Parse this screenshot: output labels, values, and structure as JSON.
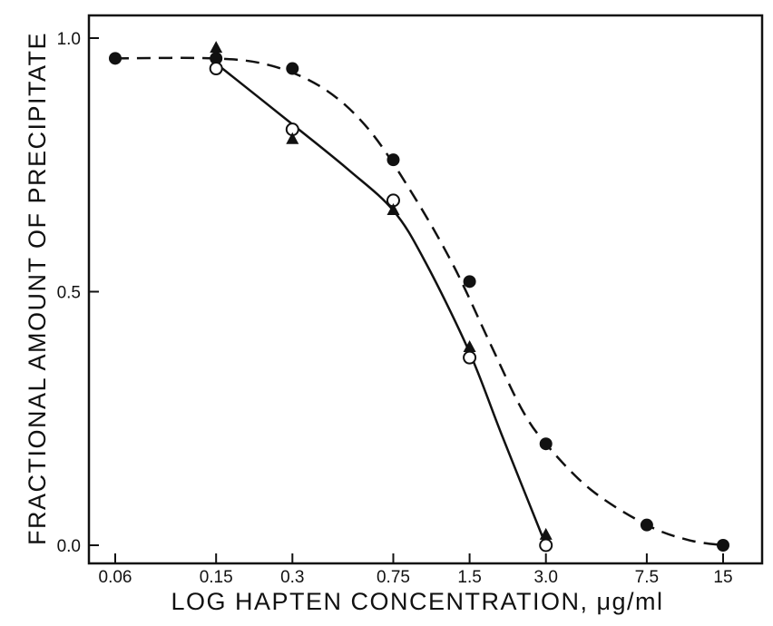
{
  "chart_data": {
    "type": "line",
    "xscale": "log",
    "title": "",
    "xlabel": "LOG HAPTEN CONCENTRATION, μg/ml",
    "ylabel": "FRACTIONAL AMOUNT OF PRECIPITATE",
    "xticks": [
      0.06,
      0.15,
      0.3,
      0.75,
      1.5,
      3.0,
      7.5,
      15
    ],
    "xtick_labels": [
      "0.06",
      "0.15",
      "0.3",
      "0.75",
      "1.5",
      "3.0",
      "7.5",
      "15"
    ],
    "yticks": [
      0.0,
      0.5,
      1.0
    ],
    "ytick_labels": [
      "0.0",
      "0.5",
      "1.0"
    ],
    "ylim": [
      0.0,
      1.0
    ],
    "grid": false,
    "legend": "none",
    "series": [
      {
        "marker": "filled-circle",
        "line": "dashed",
        "color": "#111111",
        "x": [
          0.06,
          0.15,
          0.3,
          0.75,
          1.5,
          3.0,
          7.5,
          15
        ],
        "y": [
          0.96,
          0.96,
          0.94,
          0.76,
          0.52,
          0.2,
          0.04,
          0.0
        ],
        "curve": {
          "x": [
            0.06,
            0.15,
            0.25,
            0.4,
            0.6,
            0.9,
            1.3,
            1.8,
            2.4,
            3.0,
            4.5,
            7.5,
            11,
            15
          ],
          "y": [
            0.96,
            0.96,
            0.945,
            0.9,
            0.82,
            0.69,
            0.55,
            0.4,
            0.27,
            0.2,
            0.11,
            0.04,
            0.01,
            0.0
          ]
        }
      },
      {
        "marker": "open-circle",
        "line": "solid",
        "color": "#111111",
        "x": [
          0.15,
          0.3,
          0.75,
          1.5,
          3.0
        ],
        "y": [
          0.94,
          0.82,
          0.68,
          0.37,
          0.0
        ]
      },
      {
        "marker": "filled-triangle",
        "line": "solid",
        "color": "#111111",
        "x": [
          0.15,
          0.3,
          0.75,
          1.5,
          3.0
        ],
        "y": [
          0.98,
          0.8,
          0.66,
          0.39,
          0.02
        ]
      }
    ],
    "solid_curve": {
      "x": [
        0.15,
        0.3,
        0.5,
        0.75,
        1.0,
        1.5,
        2.0,
        3.0
      ],
      "y": [
        0.95,
        0.83,
        0.74,
        0.66,
        0.56,
        0.38,
        0.22,
        0.0
      ]
    }
  }
}
